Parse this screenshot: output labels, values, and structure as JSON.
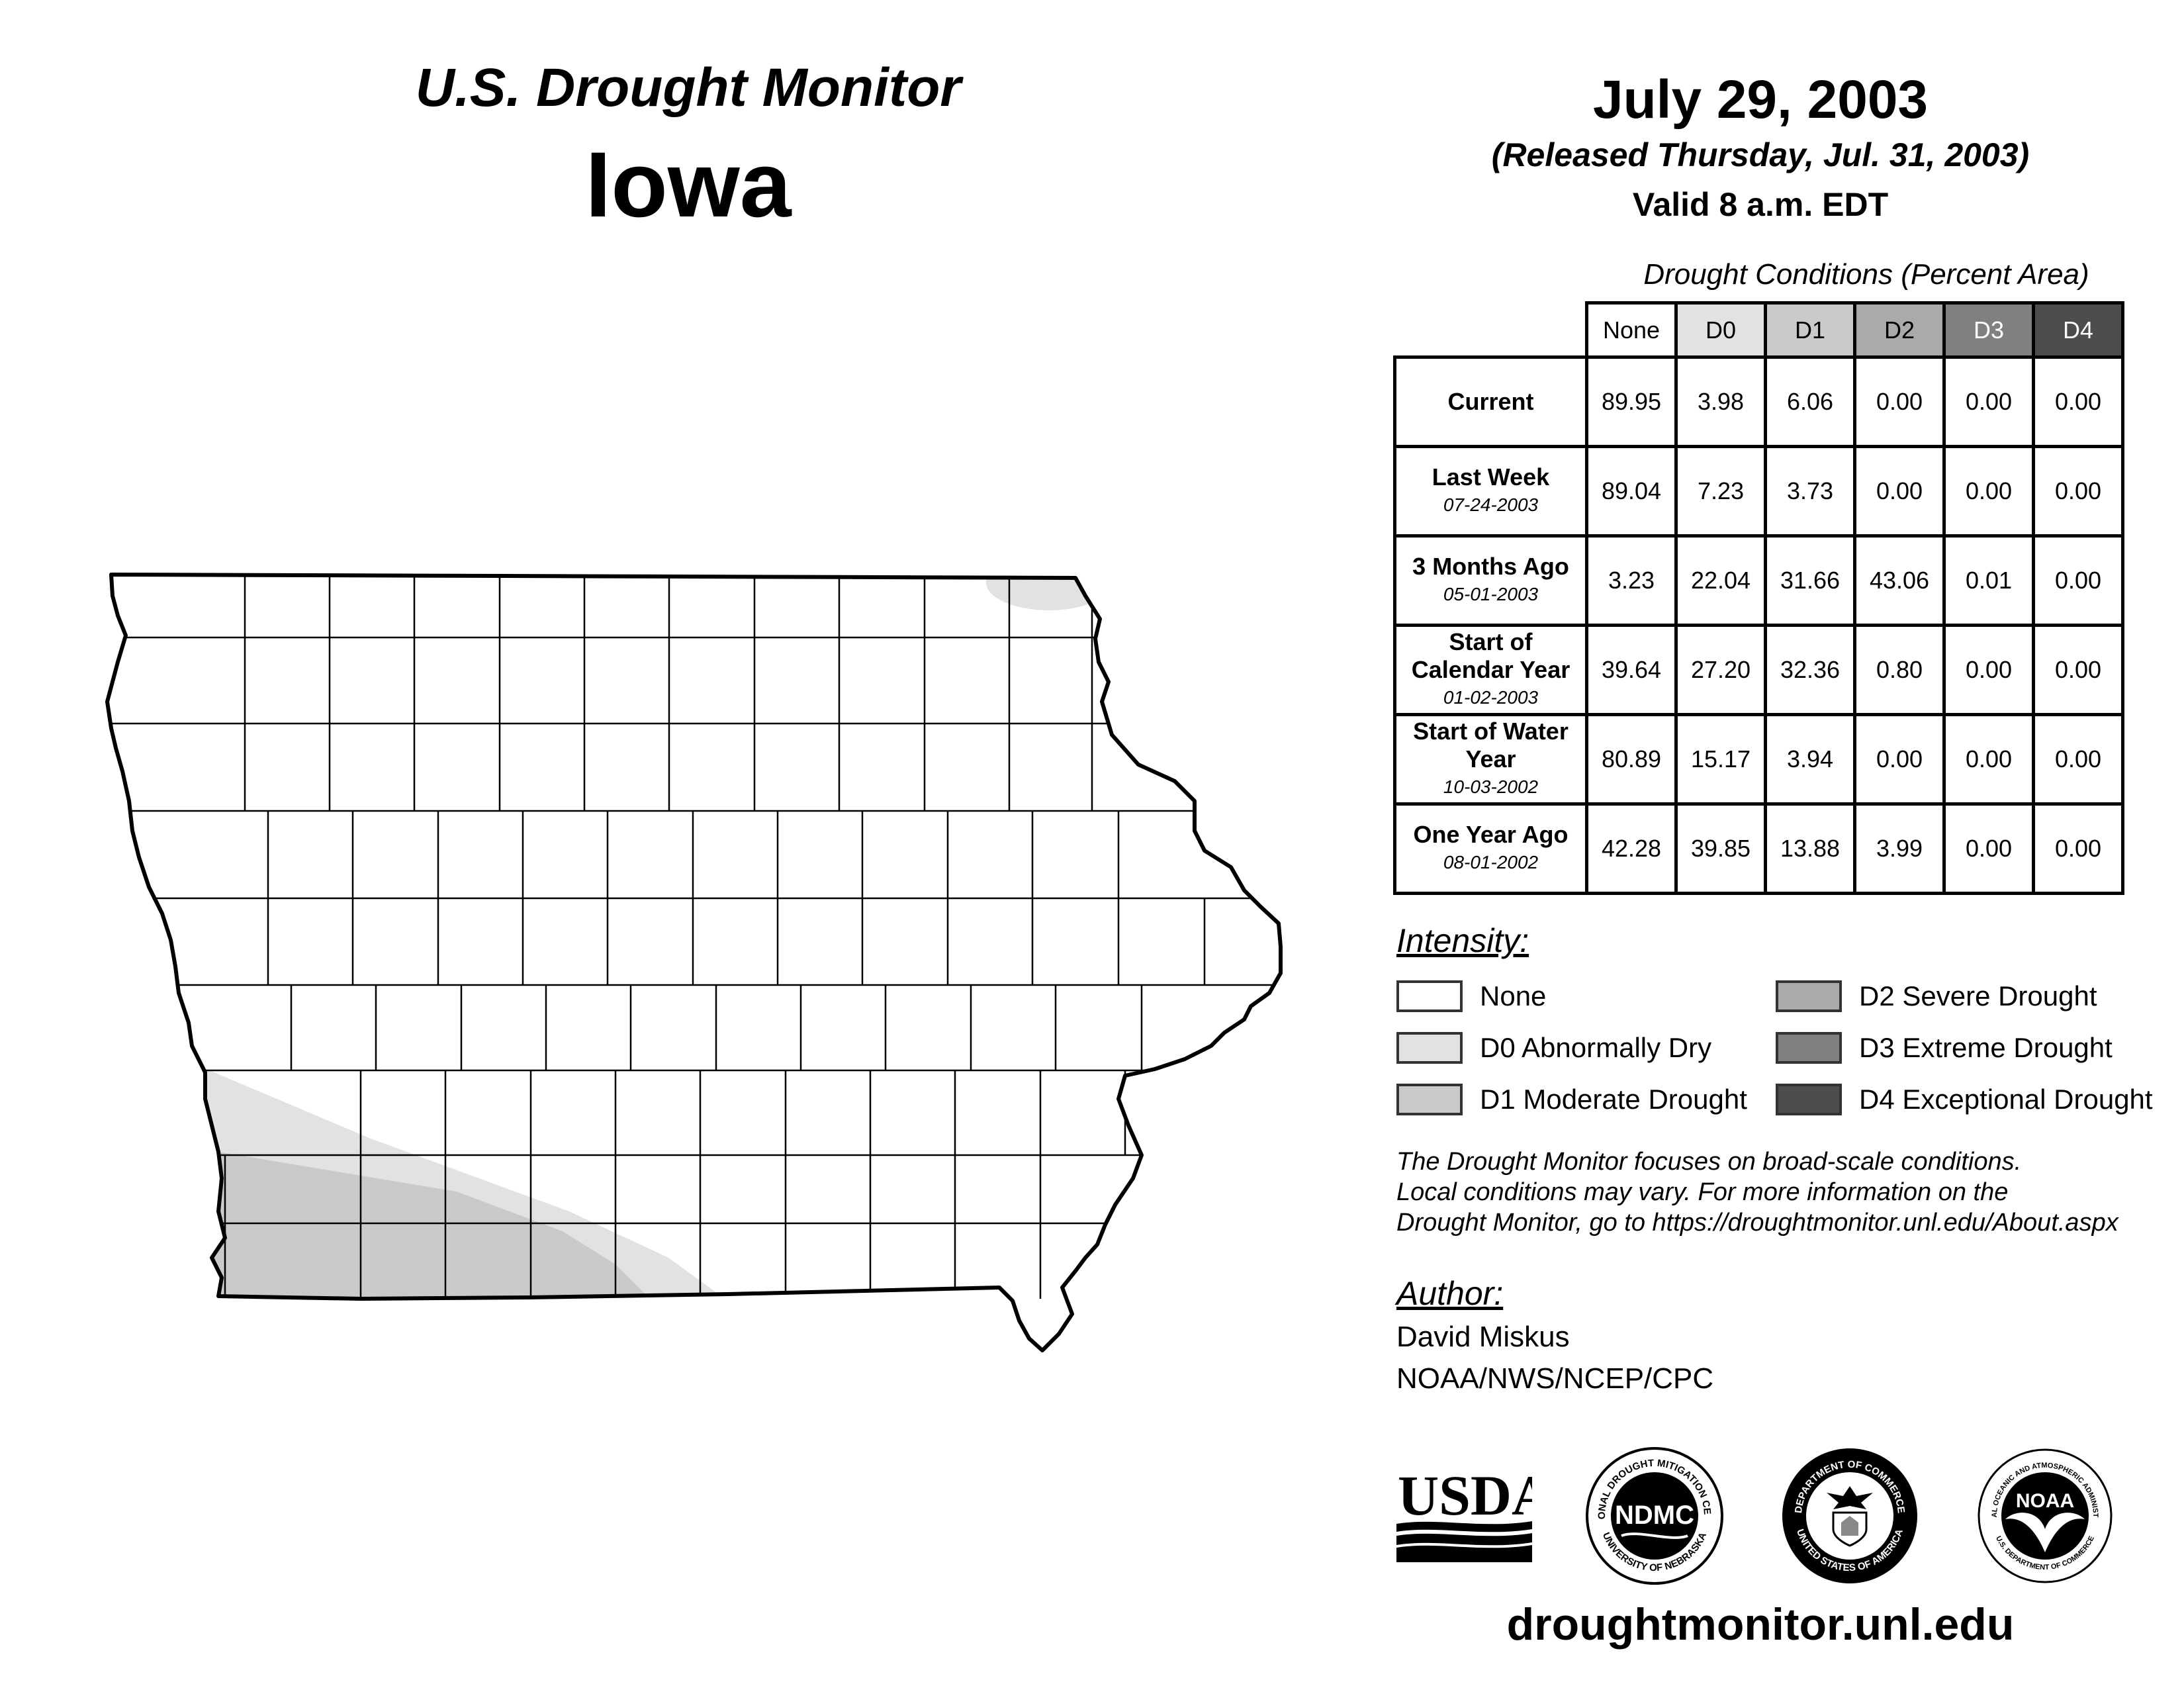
{
  "header": {
    "title": "U.S. Drought Monitor",
    "state": "Iowa",
    "date": "July 29, 2003",
    "released": "(Released Thursday, Jul. 31, 2003)",
    "valid": "Valid 8 a.m. EDT"
  },
  "table": {
    "caption": "Drought Conditions (Percent Area)",
    "columns": [
      "None",
      "D0",
      "D1",
      "D2",
      "D3",
      "D4"
    ],
    "rows": [
      {
        "label": "Current",
        "date": "",
        "values": [
          "89.95",
          "3.98",
          "6.06",
          "0.00",
          "0.00",
          "0.00"
        ]
      },
      {
        "label": "Last Week",
        "date": "07-24-2003",
        "values": [
          "89.04",
          "7.23",
          "3.73",
          "0.00",
          "0.00",
          "0.00"
        ]
      },
      {
        "label": "3 Months Ago",
        "date": "05-01-2003",
        "values": [
          "3.23",
          "22.04",
          "31.66",
          "43.06",
          "0.01",
          "0.00"
        ]
      },
      {
        "label": "Start of Calendar Year",
        "date": "01-02-2003",
        "values": [
          "39.64",
          "27.20",
          "32.36",
          "0.80",
          "0.00",
          "0.00"
        ]
      },
      {
        "label": "Start of Water Year",
        "date": "10-03-2002",
        "values": [
          "80.89",
          "15.17",
          "3.94",
          "0.00",
          "0.00",
          "0.00"
        ]
      },
      {
        "label": "One Year Ago",
        "date": "08-01-2002",
        "values": [
          "42.28",
          "39.85",
          "13.88",
          "3.99",
          "0.00",
          "0.00"
        ]
      }
    ]
  },
  "legend": {
    "title": "Intensity:",
    "items": [
      {
        "label": "None",
        "color": "#ffffff"
      },
      {
        "label": "D0 Abnormally Dry",
        "color": "#e2e2e2"
      },
      {
        "label": "D1 Moderate Drought",
        "color": "#cacaca"
      },
      {
        "label": "D2 Severe Drought",
        "color": "#aaaaaa"
      },
      {
        "label": "D3 Extreme Drought",
        "color": "#808080"
      },
      {
        "label": "D4 Exceptional Drought",
        "color": "#4d4d4d"
      }
    ]
  },
  "note": {
    "line1": "The Drought Monitor focuses on broad-scale conditions.",
    "line2": "Local conditions may vary. For more information on the",
    "line3": "Drought Monitor, go to https://droughtmonitor.unl.edu/About.aspx"
  },
  "author": {
    "title": "Author:",
    "name": "David Miskus",
    "org": "NOAA/NWS/NCEP/CPC"
  },
  "logos": {
    "usda": "USDA",
    "ndmc": "NDMC",
    "ndmc_ring_top": "NATIONAL DROUGHT MITIGATION CENTER",
    "ndmc_ring_bottom": "UNIVERSITY OF NEBRASKA",
    "doc_ring_top": "DEPARTMENT OF COMMERCE",
    "doc_ring_bottom": "UNITED STATES OF AMERICA",
    "noaa": "NOAA",
    "noaa_ring_top": "NATIONAL OCEANIC AND ATMOSPHERIC ADMINISTRATION",
    "noaa_ring_bottom": "U.S. DEPARTMENT OF COMMERCE"
  },
  "footer": {
    "url": "droughtmonitor.unl.edu"
  },
  "colors": {
    "d0": "#e2e2e2",
    "d1": "#cacaca",
    "outline": "#000000"
  }
}
